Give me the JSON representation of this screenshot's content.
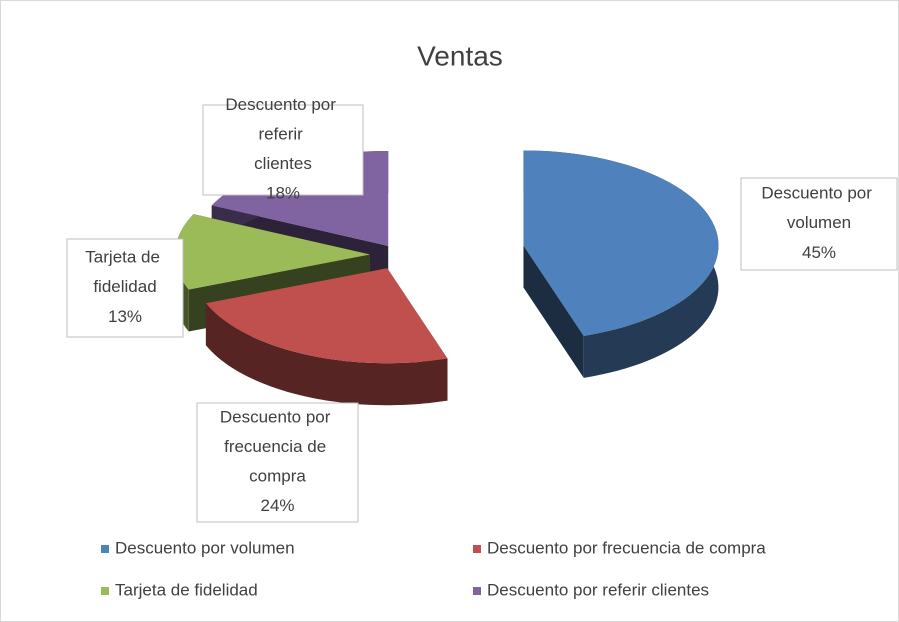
{
  "chart_data": {
    "type": "pie",
    "title": "Ventas",
    "categories": [
      "Descuento por volumen",
      "Descuento por frecuencia de compra",
      "Tarjeta de fidelidad",
      "Descuento por referir clientes"
    ],
    "values": [
      45,
      24,
      13,
      18
    ],
    "value_labels": [
      "45%",
      "24%",
      "13%",
      "18%"
    ],
    "colors": [
      "#4f81bd",
      "#c0504d",
      "#9bbb59",
      "#8064a2"
    ],
    "legend": "bottom"
  }
}
